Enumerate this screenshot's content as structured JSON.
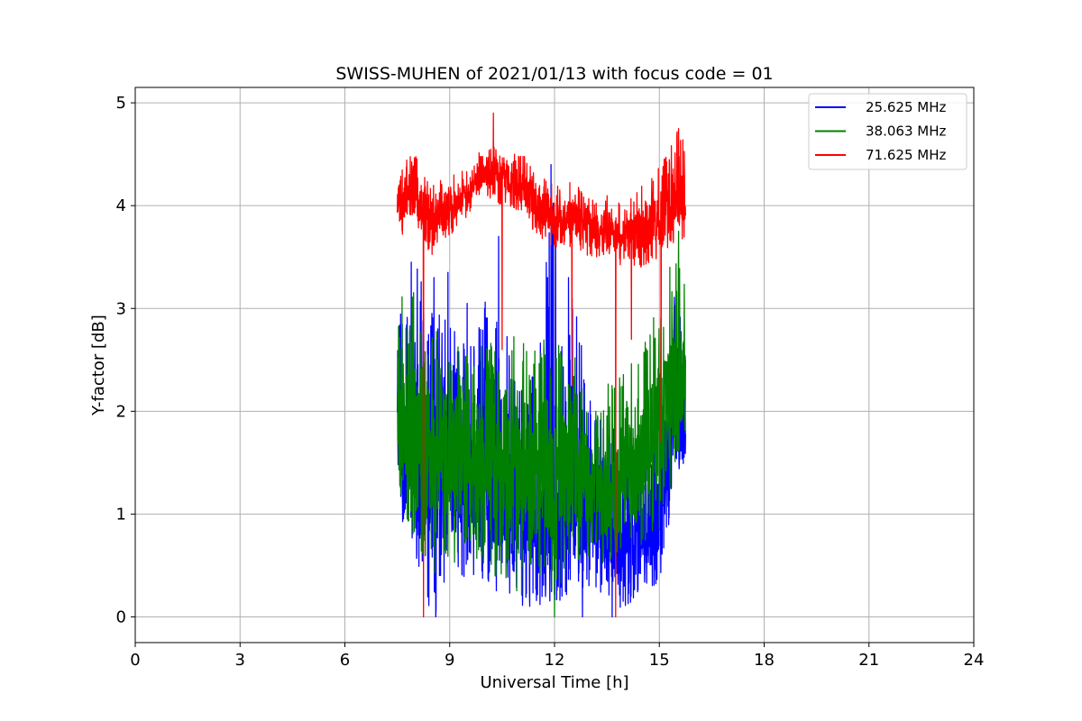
{
  "chart_data": {
    "type": "line",
    "title": "SWISS-MUHEN of 2021/01/13 with focus code = 01",
    "xlabel": "Universal Time [h]",
    "ylabel": "Y-factor [dB]",
    "xlim": [
      0,
      24
    ],
    "ylim": [
      -0.25,
      5.15
    ],
    "xticks": [
      0,
      3,
      6,
      9,
      12,
      15,
      18,
      21,
      24
    ],
    "yticks": [
      0,
      1,
      2,
      3,
      4,
      5
    ],
    "grid": true,
    "legend_position": "top-right",
    "series": [
      {
        "name": "25.625 MHz",
        "color": "#0000ff",
        "x_range": [
          7.5,
          15.75
        ],
        "envelope": [
          {
            "x": 7.5,
            "lo": 1.1,
            "hi": 2.9,
            "mid": 1.7
          },
          {
            "x": 8.0,
            "lo": 0.5,
            "hi": 3.45,
            "mid": 1.6
          },
          {
            "x": 8.5,
            "lo": 0.0,
            "hi": 3.0,
            "mid": 1.3
          },
          {
            "x": 9.0,
            "lo": 0.3,
            "hi": 3.0,
            "mid": 1.5
          },
          {
            "x": 9.5,
            "lo": 0.4,
            "hi": 2.6,
            "mid": 1.4
          },
          {
            "x": 10.0,
            "lo": 0.35,
            "hi": 3.1,
            "mid": 1.4
          },
          {
            "x": 10.5,
            "lo": 0.2,
            "hi": 2.9,
            "mid": 1.2
          },
          {
            "x": 11.0,
            "lo": 0.1,
            "hi": 2.5,
            "mid": 1.1
          },
          {
            "x": 11.5,
            "lo": 0.05,
            "hi": 2.4,
            "mid": 1.0
          },
          {
            "x": 12.0,
            "lo": 0.1,
            "hi": 4.4,
            "mid": 1.1
          },
          {
            "x": 12.5,
            "lo": 0.2,
            "hi": 3.2,
            "mid": 1.2
          },
          {
            "x": 13.0,
            "lo": 0.3,
            "hi": 2.2,
            "mid": 1.1
          },
          {
            "x": 13.5,
            "lo": 0.2,
            "hi": 1.8,
            "mid": 0.8
          },
          {
            "x": 14.0,
            "lo": 0.0,
            "hi": 1.9,
            "mid": 0.7
          },
          {
            "x": 14.5,
            "lo": 0.3,
            "hi": 1.7,
            "mid": 0.8
          },
          {
            "x": 15.0,
            "lo": 0.3,
            "hi": 2.1,
            "mid": 1.0
          },
          {
            "x": 15.5,
            "lo": 1.4,
            "hi": 3.3,
            "mid": 2.0
          },
          {
            "x": 15.75,
            "lo": 1.5,
            "hi": 2.5,
            "mid": 1.7
          }
        ],
        "spikes": [
          {
            "x": 7.9,
            "y": 3.45
          },
          {
            "x": 8.55,
            "y": 3.3
          },
          {
            "x": 8.95,
            "y": 3.35
          },
          {
            "x": 9.5,
            "y": 3.05
          },
          {
            "x": 10.0,
            "y": 3.0
          },
          {
            "x": 10.4,
            "y": 3.7
          },
          {
            "x": 11.8,
            "y": 3.3
          },
          {
            "x": 11.9,
            "y": 4.4
          },
          {
            "x": 12.4,
            "y": 3.3
          },
          {
            "x": 8.6,
            "y": 0.0
          },
          {
            "x": 12.8,
            "y": 0.0
          },
          {
            "x": 13.65,
            "y": 0.0
          }
        ]
      },
      {
        "name": "38.063 MHz",
        "color": "#008000",
        "x_range": [
          7.5,
          15.75
        ],
        "envelope": [
          {
            "x": 7.5,
            "lo": 1.3,
            "hi": 3.1,
            "mid": 1.9
          },
          {
            "x": 8.0,
            "lo": 0.6,
            "hi": 3.2,
            "mid": 1.7
          },
          {
            "x": 8.5,
            "lo": 0.4,
            "hi": 2.8,
            "mid": 1.6
          },
          {
            "x": 9.0,
            "lo": 0.5,
            "hi": 2.9,
            "mid": 1.6
          },
          {
            "x": 9.5,
            "lo": 0.5,
            "hi": 2.6,
            "mid": 1.6
          },
          {
            "x": 10.0,
            "lo": 0.5,
            "hi": 2.7,
            "mid": 1.5
          },
          {
            "x": 10.5,
            "lo": 0.3,
            "hi": 2.8,
            "mid": 1.5
          },
          {
            "x": 11.0,
            "lo": 0.2,
            "hi": 2.7,
            "mid": 1.4
          },
          {
            "x": 11.5,
            "lo": 0.3,
            "hi": 2.7,
            "mid": 1.4
          },
          {
            "x": 12.0,
            "lo": 0.2,
            "hi": 2.7,
            "mid": 1.4
          },
          {
            "x": 12.5,
            "lo": 0.5,
            "hi": 2.7,
            "mid": 1.5
          },
          {
            "x": 13.0,
            "lo": 0.5,
            "hi": 2.0,
            "mid": 1.3
          },
          {
            "x": 13.5,
            "lo": 0.5,
            "hi": 2.3,
            "mid": 1.2
          },
          {
            "x": 14.0,
            "lo": 0.6,
            "hi": 2.4,
            "mid": 1.3
          },
          {
            "x": 14.5,
            "lo": 0.7,
            "hi": 2.6,
            "mid": 1.5
          },
          {
            "x": 15.0,
            "lo": 0.8,
            "hi": 3.1,
            "mid": 1.9
          },
          {
            "x": 15.5,
            "lo": 1.5,
            "hi": 3.5,
            "mid": 2.3
          },
          {
            "x": 15.75,
            "lo": 1.8,
            "hi": 3.2,
            "mid": 2.3
          }
        ],
        "spikes": [
          {
            "x": 15.55,
            "y": 3.75
          },
          {
            "x": 15.3,
            "y": 3.4
          },
          {
            "x": 12.0,
            "y": 0.0
          },
          {
            "x": 10.3,
            "y": 0.4
          }
        ]
      },
      {
        "name": "71.625 MHz",
        "color": "#ff0000",
        "x_range": [
          7.5,
          15.75
        ],
        "envelope": [
          {
            "x": 7.5,
            "lo": 3.65,
            "hi": 4.35,
            "mid": 4.0
          },
          {
            "x": 8.0,
            "lo": 3.8,
            "hi": 4.55,
            "mid": 4.1
          },
          {
            "x": 8.5,
            "lo": 3.5,
            "hi": 4.2,
            "mid": 3.9
          },
          {
            "x": 9.0,
            "lo": 3.7,
            "hi": 4.3,
            "mid": 4.0
          },
          {
            "x": 9.5,
            "lo": 3.9,
            "hi": 4.35,
            "mid": 4.1
          },
          {
            "x": 10.0,
            "lo": 4.1,
            "hi": 4.6,
            "mid": 4.35
          },
          {
            "x": 10.5,
            "lo": 4.0,
            "hi": 4.55,
            "mid": 4.3
          },
          {
            "x": 11.0,
            "lo": 3.95,
            "hi": 4.55,
            "mid": 4.2
          },
          {
            "x": 11.5,
            "lo": 3.7,
            "hi": 4.3,
            "mid": 4.0
          },
          {
            "x": 12.0,
            "lo": 3.6,
            "hi": 4.2,
            "mid": 3.85
          },
          {
            "x": 12.5,
            "lo": 3.55,
            "hi": 4.25,
            "mid": 3.9
          },
          {
            "x": 13.0,
            "lo": 3.5,
            "hi": 4.1,
            "mid": 3.8
          },
          {
            "x": 13.5,
            "lo": 3.5,
            "hi": 4.1,
            "mid": 3.75
          },
          {
            "x": 14.0,
            "lo": 3.4,
            "hi": 4.0,
            "mid": 3.7
          },
          {
            "x": 14.5,
            "lo": 3.4,
            "hi": 4.2,
            "mid": 3.75
          },
          {
            "x": 15.0,
            "lo": 3.5,
            "hi": 4.4,
            "mid": 3.9
          },
          {
            "x": 15.5,
            "lo": 3.6,
            "hi": 4.75,
            "mid": 4.0
          },
          {
            "x": 15.75,
            "lo": 3.7,
            "hi": 4.6,
            "mid": 4.1
          }
        ],
        "spikes": [
          {
            "x": 8.25,
            "y": 0.0
          },
          {
            "x": 10.5,
            "y": 2.6
          },
          {
            "x": 10.25,
            "y": 4.9
          },
          {
            "x": 12.5,
            "y": 2.25
          },
          {
            "x": 13.75,
            "y": 0.0
          },
          {
            "x": 14.2,
            "y": 2.7
          },
          {
            "x": 15.05,
            "y": 1.7
          },
          {
            "x": 15.55,
            "y": 4.75
          }
        ]
      }
    ]
  }
}
